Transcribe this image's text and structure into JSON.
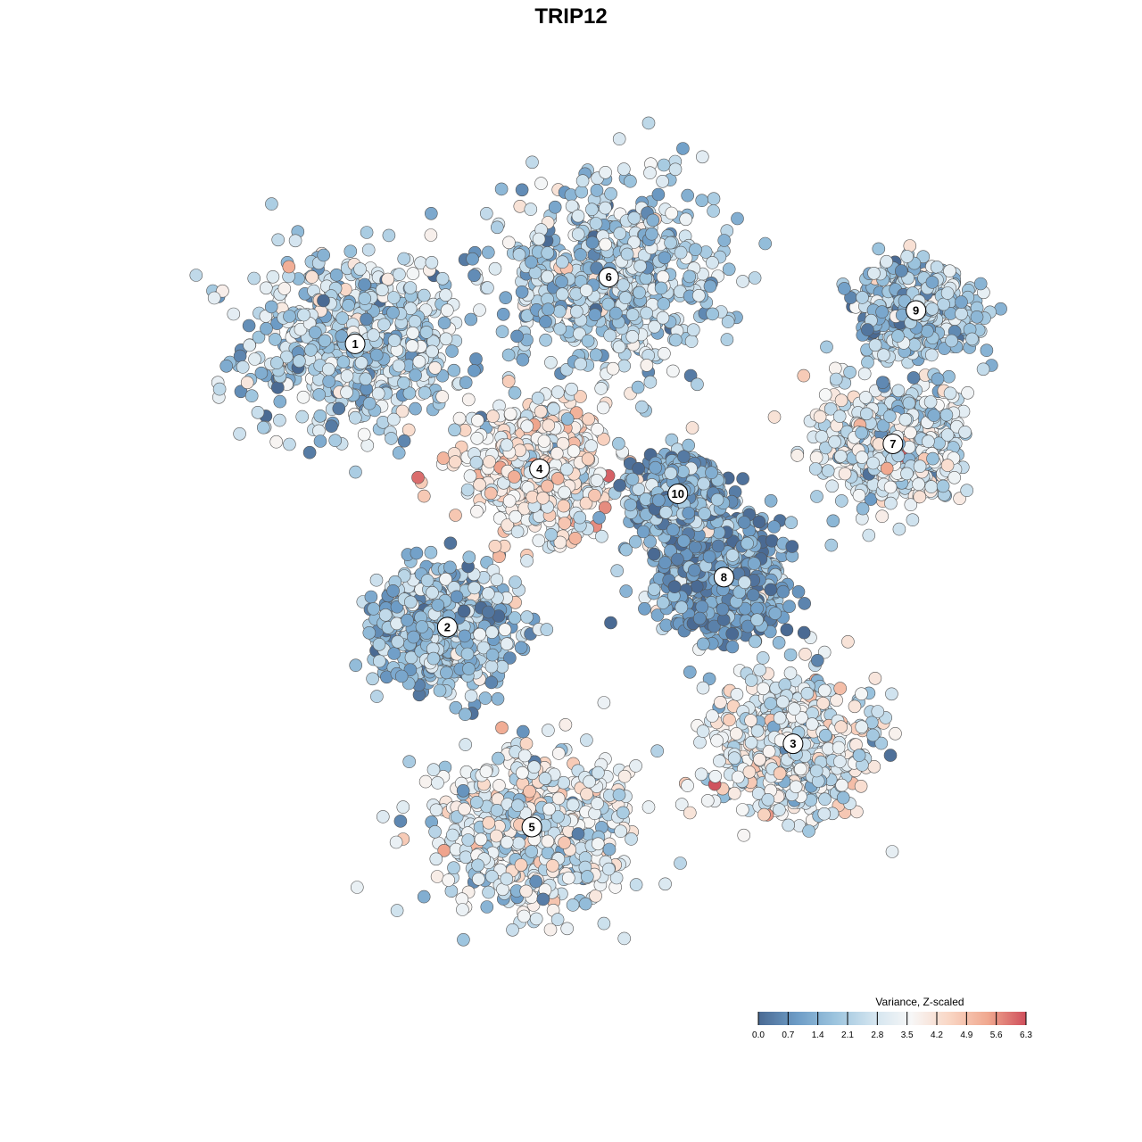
{
  "chart_data": {
    "type": "scatter",
    "title": "TRIP12",
    "xlabel": "",
    "ylabel": "",
    "axes_visible": false,
    "grid": false,
    "point_count_estimate": 6000,
    "color_scale": {
      "title": "Variance, Z-scaled",
      "min": 0.0,
      "max": 6.3,
      "ticks": [
        "0.0",
        "0.7",
        "1.4",
        "2.1",
        "2.8",
        "3.5",
        "4.2",
        "4.9",
        "5.6",
        "6.3"
      ],
      "colors": [
        "#4a6a93",
        "#6d9cc6",
        "#9cc4de",
        "#d2e4ef",
        "#f7f7f7",
        "#f9d6c4",
        "#f0a88f",
        "#cf4f5c"
      ],
      "legend_position": "bottom-right"
    },
    "clusters": [
      {
        "label": "1",
        "x": -27,
        "y": 23,
        "mean_value": 2.2,
        "spread": 8
      },
      {
        "label": "2",
        "x": -15,
        "y": -11,
        "mean_value": 1.8,
        "spread": 5
      },
      {
        "label": "3",
        "x": 30,
        "y": -25,
        "mean_value": 3.0,
        "spread": 6
      },
      {
        "label": "4",
        "x": -3,
        "y": 8,
        "mean_value": 3.6,
        "spread": 5
      },
      {
        "label": "5",
        "x": -4,
        "y": -35,
        "mean_value": 3.0,
        "spread": 7
      },
      {
        "label": "6",
        "x": 6,
        "y": 31,
        "mean_value": 2.2,
        "spread": 8
      },
      {
        "label": "7",
        "x": 43,
        "y": 11,
        "mean_value": 2.8,
        "spread": 5
      },
      {
        "label": "8",
        "x": 21,
        "y": -5,
        "mean_value": 1.2,
        "spread": 5
      },
      {
        "label": "9",
        "x": 46,
        "y": 27,
        "mean_value": 2.0,
        "spread": 4
      },
      {
        "label": "10",
        "x": 15,
        "y": 5,
        "mean_value": 1.3,
        "spread": 3
      }
    ],
    "xlim": [
      -50,
      58
    ],
    "ylim": [
      -53,
      45
    ]
  }
}
